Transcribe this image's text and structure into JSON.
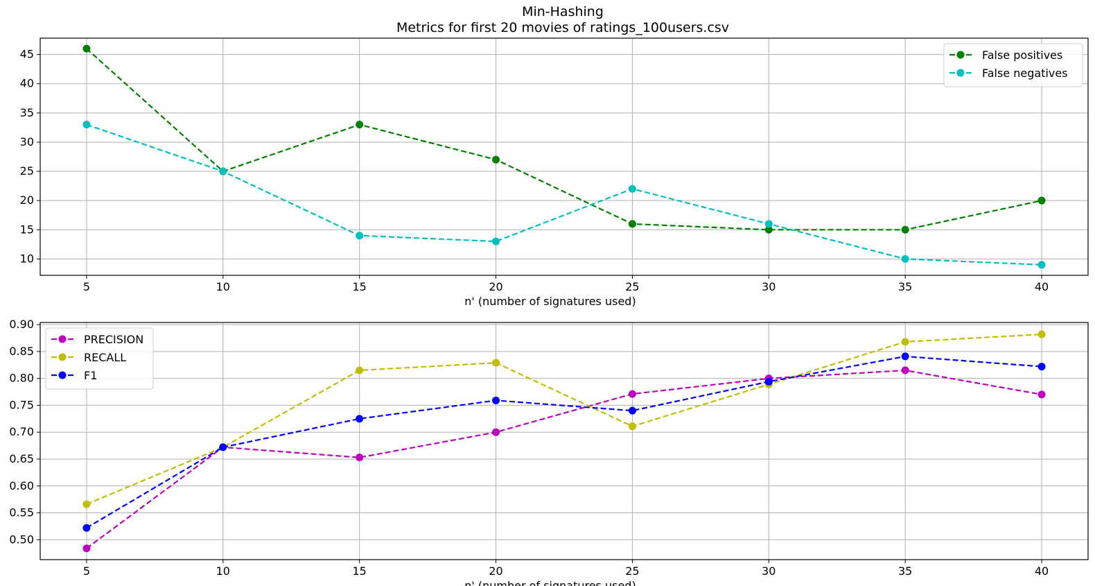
{
  "title_lines": [
    "Min-Hashing",
    "Metrics for first 20 movies of ratings_100users.csv"
  ],
  "chart_data": [
    {
      "type": "line",
      "x": [
        5,
        10,
        15,
        20,
        25,
        30,
        35,
        40
      ],
      "xlabel": "n' (number of signatures used)",
      "ylabel": "",
      "xticks": [
        5,
        10,
        15,
        20,
        25,
        30,
        35,
        40
      ],
      "yticks": [
        10,
        15,
        20,
        25,
        30,
        35,
        40,
        45
      ],
      "xlim": [
        3.3,
        41.7
      ],
      "ylim": [
        7.2,
        47.8
      ],
      "grid": true,
      "legend_position": "top-right",
      "line_style": "dashed with circle markers",
      "series": [
        {
          "name": "False positives",
          "color": "#008000",
          "values": [
            46,
            25,
            33,
            27,
            16,
            15,
            15,
            20
          ]
        },
        {
          "name": "False negatives",
          "color": "#00bfbf",
          "values": [
            33,
            25,
            14,
            13,
            22,
            16,
            10,
            9
          ]
        }
      ]
    },
    {
      "type": "line",
      "x": [
        5,
        10,
        15,
        20,
        25,
        30,
        35,
        40
      ],
      "xlabel": "n' (number of signatures used)",
      "ylabel": "",
      "xticks": [
        5,
        10,
        15,
        20,
        25,
        30,
        35,
        40
      ],
      "yticks": [
        "0.50",
        "0.55",
        "0.60",
        "0.65",
        "0.70",
        "0.75",
        "0.80",
        "0.85",
        "0.90"
      ],
      "xlim": [
        3.3,
        41.7
      ],
      "ylim": [
        0.463,
        0.904
      ],
      "grid": true,
      "legend_position": "top-left",
      "line_style": "dashed with circle markers",
      "series": [
        {
          "name": "PRECISION",
          "color": "#bf00bf",
          "values": [
            0.484,
            0.672,
            0.653,
            0.7,
            0.771,
            0.8,
            0.815,
            0.77
          ]
        },
        {
          "name": "RECALL",
          "color": "#bfbf00",
          "values": [
            0.566,
            0.672,
            0.815,
            0.829,
            0.711,
            0.789,
            0.868,
            0.882
          ]
        },
        {
          "name": "F1",
          "color": "#0000ff",
          "values": [
            0.522,
            0.672,
            0.725,
            0.759,
            0.74,
            0.794,
            0.841,
            0.822
          ]
        }
      ]
    }
  ]
}
